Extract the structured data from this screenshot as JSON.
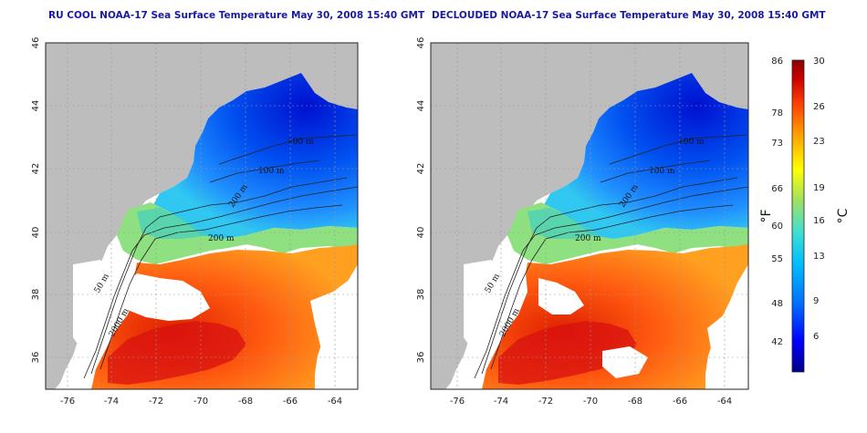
{
  "panels": [
    {
      "id": "left",
      "title": "RU COOL NOAA-17 Sea Surface Temperature May 30, 2008 15:40 GMT",
      "contour_labels": [
        "100 m",
        "100 m",
        "200 m",
        "200 m",
        "50 m",
        "2000 m"
      ]
    },
    {
      "id": "right",
      "title": "DECLOUDED NOAA-17 Sea Surface Temperature May 30, 2008 15:40 GMT",
      "contour_labels": [
        "100 m",
        "100 m",
        "200 m",
        "200 m",
        "50 m",
        "2000 m"
      ]
    }
  ],
  "axes": {
    "lat_ticks": [
      "46",
      "44",
      "42",
      "40",
      "38",
      "36"
    ],
    "lon_ticks": [
      "-76",
      "-74",
      "-72",
      "-70",
      "-68",
      "-66",
      "-64"
    ]
  },
  "colorbar": {
    "fahrenheit_ticks": [
      "86",
      "78",
      "73",
      "66",
      "60",
      "55",
      "48",
      "42"
    ],
    "celsius_ticks": [
      "30",
      "26",
      "23",
      "19",
      "16",
      "13",
      "9",
      "6"
    ],
    "fahrenheit_unit": "°F",
    "celsius_unit": "°C",
    "colors": [
      "#00008b",
      "#0000ff",
      "#0070ff",
      "#00bfff",
      "#40e0d0",
      "#a0e060",
      "#ffff00",
      "#ffa000",
      "#ff4000",
      "#cc0000",
      "#8b0000"
    ]
  },
  "colors": {
    "land": "#bdbdbd",
    "cloud_mask": "#ffffff",
    "title": "#1a1aa0",
    "contour": "#222222"
  }
}
